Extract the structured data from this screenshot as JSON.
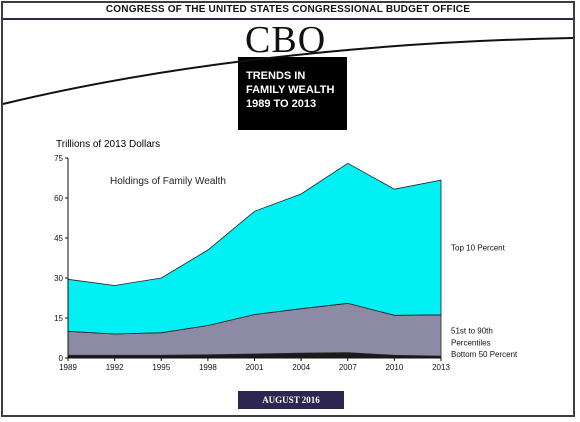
{
  "header": {
    "agency": "CONGRESS OF THE UNITED STATES CONGRESSIONAL BUDGET OFFICE",
    "logo": "CBO"
  },
  "title_box": {
    "line1": "TRENDS  IN",
    "line2": "FAMILY WEALTH",
    "line3": "1989 TO 2013"
  },
  "footer": {
    "date": "AUGUST 2016"
  },
  "colors": {
    "top10": "#00f0f4",
    "mid": "#8d8aa6",
    "bottom": "#1a1a1a",
    "navy": "#2e2650"
  },
  "chart_data": {
    "type": "area",
    "stacked": true,
    "ylabel": "Trillions of 2013 Dollars",
    "inner_label": "Holdings of Family Wealth",
    "ylim": [
      0,
      75
    ],
    "yticks": [
      0,
      15,
      30,
      45,
      60,
      75
    ],
    "x": [
      "1989",
      "1992",
      "1995",
      "1998",
      "2001",
      "2004",
      "2007",
      "2010",
      "2013"
    ],
    "series": [
      {
        "name": "Bottom 50 Percent",
        "values": [
          1.0,
          1.0,
          1.0,
          1.2,
          1.5,
          1.8,
          2.0,
          1.0,
          0.7
        ]
      },
      {
        "name": "51st to 90th Percentiles",
        "values": [
          9.0,
          8.0,
          8.5,
          11.0,
          14.8,
          16.7,
          18.5,
          15.0,
          15.5
        ]
      },
      {
        "name": "Top 10 Percent",
        "values": [
          19.5,
          18.2,
          20.5,
          28.3,
          38.7,
          43.0,
          52.5,
          47.3,
          50.5
        ]
      }
    ],
    "label_lines": {
      "mid": [
        "51st to 90th",
        "Percentiles"
      ]
    },
    "grid": false,
    "legend": "right, direct labels"
  }
}
